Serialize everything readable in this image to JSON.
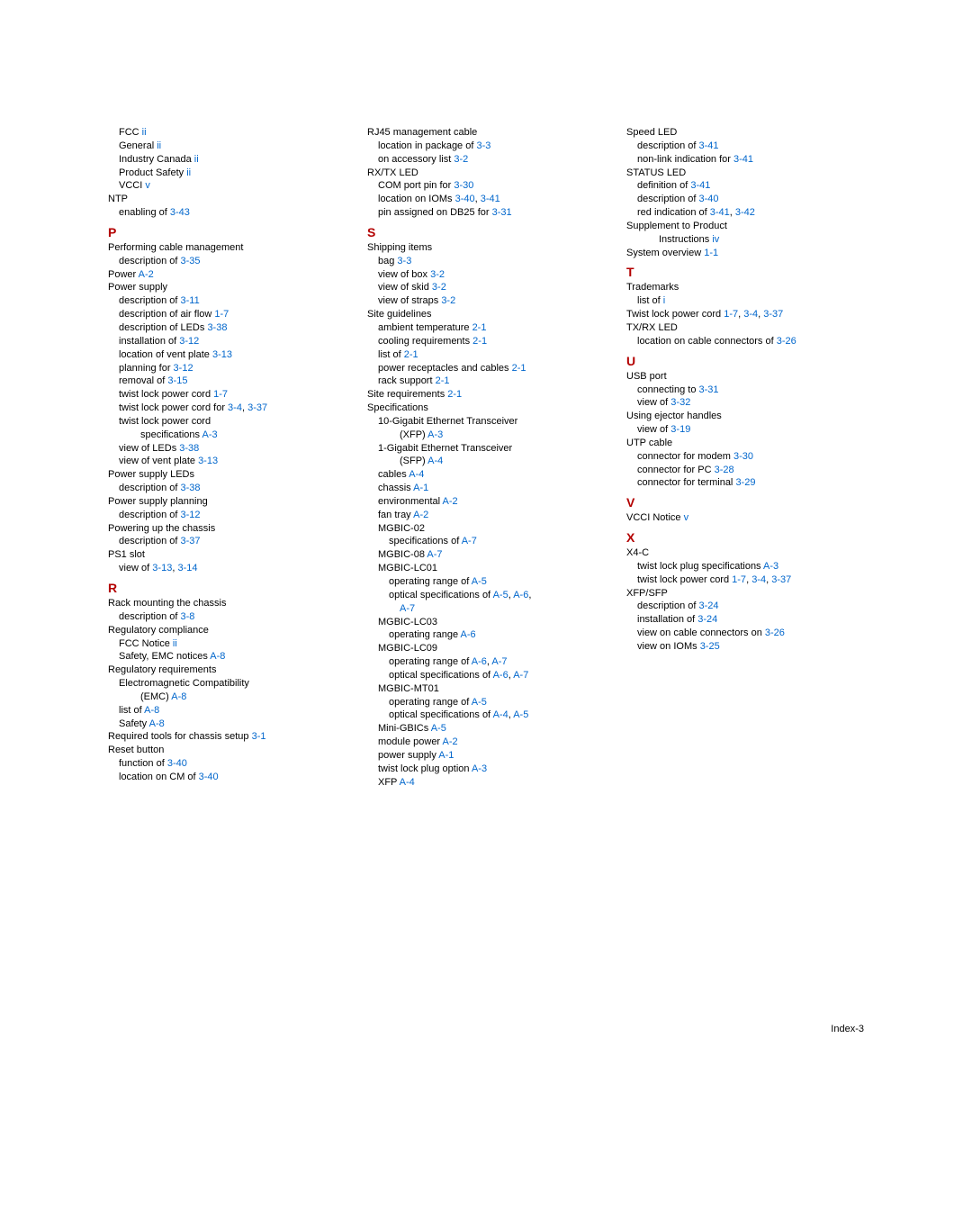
{
  "footer": {
    "page": "Index-3"
  },
  "col1": [
    {
      "level": 1,
      "pre": "FCC ",
      "links": [
        "ii"
      ]
    },
    {
      "level": 1,
      "pre": "General ",
      "links": [
        "ii"
      ]
    },
    {
      "level": 1,
      "pre": "Industry Canada ",
      "links": [
        "ii"
      ]
    },
    {
      "level": 1,
      "pre": "Product Safety ",
      "links": [
        "ii"
      ]
    },
    {
      "level": 1,
      "pre": "VCCI ",
      "links": [
        "v"
      ]
    },
    {
      "level": 0,
      "pre": "NTP"
    },
    {
      "level": 1,
      "pre": "enabling of ",
      "links": [
        "3-43"
      ]
    },
    {
      "type": "letter",
      "text": "P"
    },
    {
      "level": 0,
      "pre": "Performing cable management"
    },
    {
      "level": 1,
      "pre": "description of ",
      "links": [
        "3-35"
      ]
    },
    {
      "level": 0,
      "pre": "Power ",
      "links": [
        "A-2"
      ]
    },
    {
      "level": 0,
      "pre": "Power supply"
    },
    {
      "level": 1,
      "pre": "description of ",
      "links": [
        "3-11"
      ]
    },
    {
      "level": 1,
      "pre": "description of air flow ",
      "links": [
        "1-7"
      ]
    },
    {
      "level": 1,
      "pre": "description of LEDs ",
      "links": [
        "3-38"
      ]
    },
    {
      "level": 1,
      "pre": "installation of ",
      "links": [
        "3-12"
      ]
    },
    {
      "level": 1,
      "pre": "location of vent plate ",
      "links": [
        "3-13"
      ]
    },
    {
      "level": 1,
      "pre": "planning for ",
      "links": [
        "3-12"
      ]
    },
    {
      "level": 1,
      "pre": "removal of ",
      "links": [
        "3-15"
      ]
    },
    {
      "level": 1,
      "pre": "twist lock power cord ",
      "links": [
        "1-7"
      ]
    },
    {
      "level": 1,
      "pre": "twist lock power cord for ",
      "links": [
        "3-4",
        ", ",
        "3-37"
      ]
    },
    {
      "level": 1,
      "pre": "twist lock power cord"
    },
    {
      "level": 3,
      "pre": "specifications ",
      "links": [
        "A-3"
      ]
    },
    {
      "level": 1,
      "pre": "view of LEDs ",
      "links": [
        "3-38"
      ]
    },
    {
      "level": 1,
      "pre": "view of vent plate ",
      "links": [
        "3-13"
      ]
    },
    {
      "level": 0,
      "pre": "Power supply LEDs"
    },
    {
      "level": 1,
      "pre": "description of ",
      "links": [
        "3-38"
      ]
    },
    {
      "level": 0,
      "pre": "Power supply planning"
    },
    {
      "level": 1,
      "pre": "description of ",
      "links": [
        "3-12"
      ]
    },
    {
      "level": 0,
      "pre": "Powering up the chassis"
    },
    {
      "level": 1,
      "pre": "description of ",
      "links": [
        "3-37"
      ]
    },
    {
      "level": 0,
      "pre": "PS1 slot"
    },
    {
      "level": 1,
      "pre": "view of ",
      "links": [
        "3-13",
        ", ",
        "3-14"
      ]
    },
    {
      "type": "letter",
      "text": "R"
    },
    {
      "level": 0,
      "pre": "Rack mounting the chassis"
    },
    {
      "level": 1,
      "pre": "description of ",
      "links": [
        "3-8"
      ]
    },
    {
      "level": 0,
      "pre": "Regulatory compliance"
    },
    {
      "level": 1,
      "pre": "FCC Notice ",
      "links": [
        "ii"
      ]
    },
    {
      "level": 1,
      "pre": "Safety, EMC notices ",
      "links": [
        "A-8"
      ]
    },
    {
      "level": 0,
      "pre": "Regulatory requirements"
    },
    {
      "level": 1,
      "pre": "Electromagnetic Compatibility"
    },
    {
      "level": 3,
      "pre": "(EMC) ",
      "links": [
        "A-8"
      ]
    },
    {
      "level": 1,
      "pre": "list of ",
      "links": [
        "A-8"
      ]
    },
    {
      "level": 1,
      "pre": "Safety ",
      "links": [
        "A-8"
      ]
    },
    {
      "level": 0,
      "pre": "Required tools for chassis setup ",
      "links": [
        "3-1"
      ]
    },
    {
      "level": 0,
      "pre": "Reset button"
    },
    {
      "level": 1,
      "pre": "function of ",
      "links": [
        "3-40"
      ]
    },
    {
      "level": 1,
      "pre": "location on CM of ",
      "links": [
        "3-40"
      ]
    }
  ],
  "col2": [
    {
      "level": 0,
      "pre": "RJ45 management cable"
    },
    {
      "level": 1,
      "pre": "location in package of ",
      "links": [
        "3-3"
      ]
    },
    {
      "level": 1,
      "pre": "on accessory list ",
      "links": [
        "3-2"
      ]
    },
    {
      "level": 0,
      "pre": "RX/TX LED"
    },
    {
      "level": 1,
      "pre": "COM port pin for ",
      "links": [
        "3-30"
      ]
    },
    {
      "level": 1,
      "pre": "location on IOMs ",
      "links": [
        "3-40",
        ", ",
        "3-41"
      ]
    },
    {
      "level": 1,
      "pre": "pin assigned on DB25 for ",
      "links": [
        "3-31"
      ]
    },
    {
      "type": "letter",
      "text": "S"
    },
    {
      "level": 0,
      "pre": "Shipping items"
    },
    {
      "level": 1,
      "pre": "bag ",
      "links": [
        "3-3"
      ]
    },
    {
      "level": 1,
      "pre": "view of box ",
      "links": [
        "3-2"
      ]
    },
    {
      "level": 1,
      "pre": "view of skid ",
      "links": [
        "3-2"
      ]
    },
    {
      "level": 1,
      "pre": "view of straps ",
      "links": [
        "3-2"
      ]
    },
    {
      "level": 0,
      "pre": "Site guidelines"
    },
    {
      "level": 1,
      "pre": "ambient temperature ",
      "links": [
        "2-1"
      ]
    },
    {
      "level": 1,
      "pre": "cooling requirements ",
      "links": [
        "2-1"
      ]
    },
    {
      "level": 1,
      "pre": "list of ",
      "links": [
        "2-1"
      ]
    },
    {
      "level": 1,
      "pre": "power receptacles and cables ",
      "links": [
        "2-1"
      ]
    },
    {
      "level": 1,
      "pre": "rack support ",
      "links": [
        "2-1"
      ]
    },
    {
      "level": 0,
      "pre": "Site requirements ",
      "links": [
        "2-1"
      ]
    },
    {
      "level": 0,
      "pre": "Specifications"
    },
    {
      "level": 1,
      "pre": "10-Gigabit Ethernet Transceiver"
    },
    {
      "level": 3,
      "pre": "(XFP) ",
      "links": [
        "A-3"
      ]
    },
    {
      "level": 1,
      "pre": "1-Gigabit Ethernet Transceiver"
    },
    {
      "level": 3,
      "pre": "(SFP) ",
      "links": [
        "A-4"
      ]
    },
    {
      "level": 1,
      "pre": "cables ",
      "links": [
        "A-4"
      ]
    },
    {
      "level": 1,
      "pre": "chassis ",
      "links": [
        "A-1"
      ]
    },
    {
      "level": 1,
      "pre": "environmental ",
      "links": [
        "A-2"
      ]
    },
    {
      "level": 1,
      "pre": "fan tray ",
      "links": [
        "A-2"
      ]
    },
    {
      "level": 1,
      "pre": "MGBIC-02"
    },
    {
      "level": 2,
      "pre": "specifications of ",
      "links": [
        "A-7"
      ]
    },
    {
      "level": 1,
      "pre": "MGBIC-08 ",
      "links": [
        "A-7"
      ]
    },
    {
      "level": 1,
      "pre": "MGBIC-LC01"
    },
    {
      "level": 2,
      "pre": "operating range of ",
      "links": [
        "A-5"
      ]
    },
    {
      "level": 2,
      "pre": "optical specifications of ",
      "links": [
        "A-5",
        ", ",
        "A-6",
        ","
      ]
    },
    {
      "level": 3,
      "pre": "",
      "links": [
        "A-7"
      ]
    },
    {
      "level": 1,
      "pre": "MGBIC-LC03"
    },
    {
      "level": 2,
      "pre": "operating range ",
      "links": [
        "A-6"
      ]
    },
    {
      "level": 1,
      "pre": "MGBIC-LC09"
    },
    {
      "level": 2,
      "pre": "operating range of ",
      "links": [
        "A-6",
        ", ",
        "A-7"
      ]
    },
    {
      "level": 2,
      "pre": "optical specifications of ",
      "links": [
        "A-6",
        ", ",
        "A-7"
      ]
    },
    {
      "level": 1,
      "pre": "MGBIC-MT01"
    },
    {
      "level": 2,
      "pre": "operating range of ",
      "links": [
        "A-5"
      ]
    },
    {
      "level": 2,
      "pre": "optical specifications of ",
      "links": [
        "A-4",
        ", ",
        "A-5"
      ]
    },
    {
      "level": 1,
      "pre": "Mini-GBICs ",
      "links": [
        "A-5"
      ]
    },
    {
      "level": 1,
      "pre": "module power ",
      "links": [
        "A-2"
      ]
    },
    {
      "level": 1,
      "pre": "power supply ",
      "links": [
        "A-1"
      ]
    },
    {
      "level": 1,
      "pre": "twist lock plug option ",
      "links": [
        "A-3"
      ]
    },
    {
      "level": 1,
      "pre": "XFP ",
      "links": [
        "A-4"
      ]
    }
  ],
  "col3": [
    {
      "level": 0,
      "pre": "Speed LED"
    },
    {
      "level": 1,
      "pre": "description of ",
      "links": [
        "3-41"
      ]
    },
    {
      "level": 1,
      "pre": "non-link indication for ",
      "links": [
        "3-41"
      ]
    },
    {
      "level": 0,
      "pre": "STATUS LED"
    },
    {
      "level": 1,
      "pre": "definition of ",
      "links": [
        "3-41"
      ]
    },
    {
      "level": 1,
      "pre": "description of ",
      "links": [
        "3-40"
      ]
    },
    {
      "level": 1,
      "pre": "red indication of ",
      "links": [
        "3-41",
        ", ",
        "3-42"
      ]
    },
    {
      "level": 0,
      "pre": "Supplement to Product"
    },
    {
      "level": 3,
      "pre": "Instructions ",
      "links": [
        "iv"
      ]
    },
    {
      "level": 0,
      "pre": "System overview ",
      "links": [
        "1-1"
      ]
    },
    {
      "type": "letter",
      "text": "T"
    },
    {
      "level": 0,
      "pre": "Trademarks"
    },
    {
      "level": 1,
      "pre": "list of ",
      "links": [
        "i"
      ]
    },
    {
      "level": 0,
      "pre": "Twist lock power cord ",
      "links": [
        "1-7",
        ", ",
        "3-4",
        ", ",
        "3-37"
      ]
    },
    {
      "level": 0,
      "pre": "TX/RX LED"
    },
    {
      "level": 1,
      "pre": "location on cable connectors of ",
      "links": [
        "3-26"
      ]
    },
    {
      "type": "letter",
      "text": "U"
    },
    {
      "level": 0,
      "pre": "USB port"
    },
    {
      "level": 1,
      "pre": "connecting to ",
      "links": [
        "3-31"
      ]
    },
    {
      "level": 1,
      "pre": "view of ",
      "links": [
        "3-32"
      ]
    },
    {
      "level": 0,
      "pre": "Using ejector handles"
    },
    {
      "level": 1,
      "pre": "view of ",
      "links": [
        "3-19"
      ]
    },
    {
      "level": 0,
      "pre": "UTP cable"
    },
    {
      "level": 1,
      "pre": "connector for modem ",
      "links": [
        "3-30"
      ]
    },
    {
      "level": 1,
      "pre": "connector for PC ",
      "links": [
        "3-28"
      ]
    },
    {
      "level": 1,
      "pre": "connector for terminal ",
      "links": [
        "3-29"
      ]
    },
    {
      "type": "letter",
      "text": "V"
    },
    {
      "level": 0,
      "pre": "VCCI Notice ",
      "links": [
        "v"
      ]
    },
    {
      "type": "letter",
      "text": "X"
    },
    {
      "level": 0,
      "pre": "X4-C"
    },
    {
      "level": 1,
      "pre": "twist lock plug specifications ",
      "links": [
        "A-3"
      ]
    },
    {
      "level": 1,
      "pre": "twist lock power cord ",
      "links": [
        "1-7",
        ", ",
        "3-4",
        ", ",
        "3-37"
      ]
    },
    {
      "level": 0,
      "pre": "XFP/SFP"
    },
    {
      "level": 1,
      "pre": "description of ",
      "links": [
        "3-24"
      ]
    },
    {
      "level": 1,
      "pre": "installation of ",
      "links": [
        "3-24"
      ]
    },
    {
      "level": 1,
      "pre": "view on cable connectors on ",
      "links": [
        "3-26"
      ]
    },
    {
      "level": 1,
      "pre": "view on IOMs ",
      "links": [
        "3-25"
      ]
    }
  ]
}
